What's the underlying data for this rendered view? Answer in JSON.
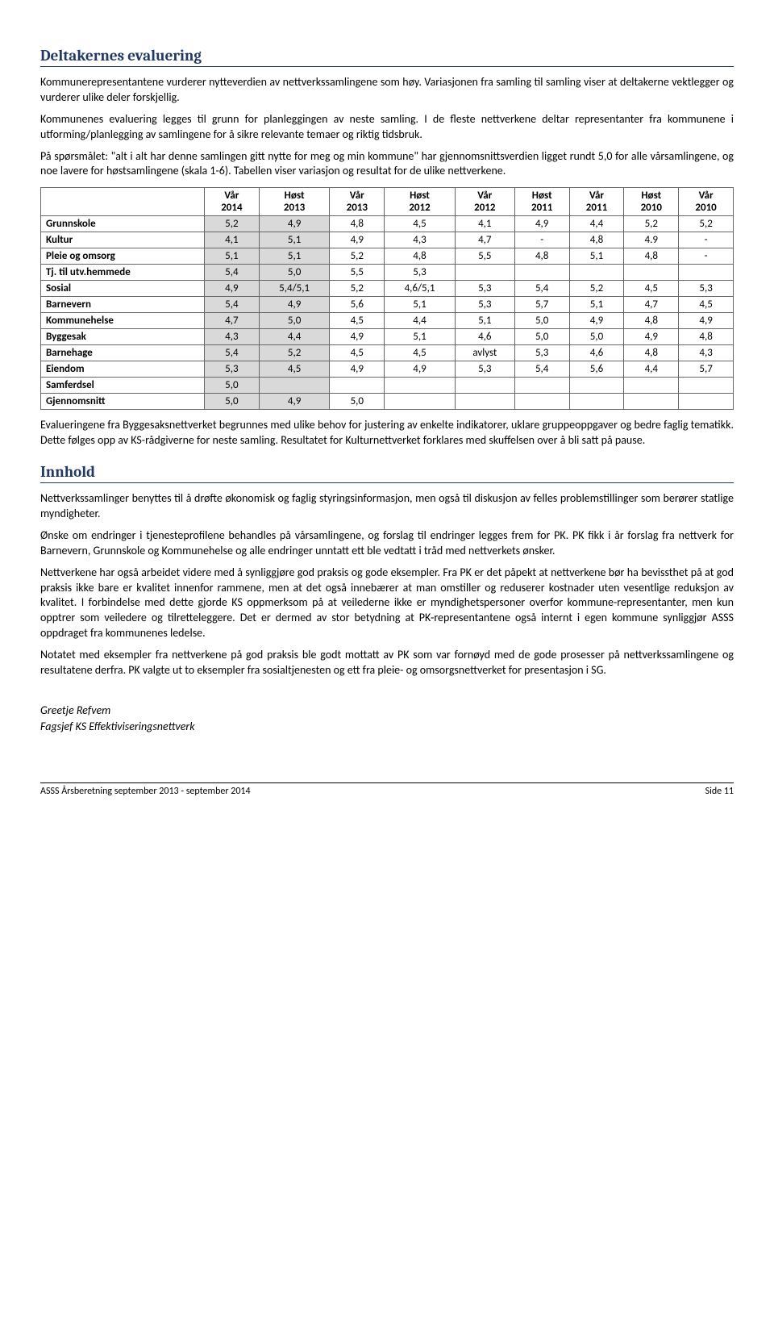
{
  "section1": {
    "title": "Deltakernes evaluering",
    "p1": "Kommunerepresentantene vurderer nytteverdien av nettverkssamlingene som høy. Variasjonen fra samling til samling viser at deltakerne vektlegger og vurderer ulike deler forskjellig.",
    "p2": "Kommunenes evaluering legges til grunn for planleggingen av neste samling. I de fleste nettverkene deltar representanter fra kommunene i utforming/planlegging av samlingene for å sikre relevante temaer og riktig tidsbruk.",
    "p3": "På spørsmålet: \"alt i alt har denne samlingen gitt nytte for meg og min kommune\" har gjennomsnittsverdien ligget rundt 5,0 for alle vårsamlingene, og noe lavere for høstsamlingene (skala 1-6). Tabellen viser variasjon og resultat for de ulike nettverkene."
  },
  "table": {
    "headers": [
      "",
      "Vår 2014",
      "Høst 2013",
      "Vår 2013",
      "Høst 2012",
      "Vår 2012",
      "Høst 2011",
      "Vår 2011",
      "Høst 2010",
      "Vår 2010"
    ],
    "rows": [
      {
        "label": "Grunnskole",
        "cells": [
          "5,2",
          "4,9",
          "4,8",
          "4,5",
          "4,1",
          "4,9",
          "4,4",
          "5,2",
          "5,2"
        ]
      },
      {
        "label": "Kultur",
        "cells": [
          "4,1",
          "5,1",
          "4,9",
          "4,3",
          "4,7",
          "-",
          "4,8",
          "4.9",
          "-"
        ]
      },
      {
        "label": "Pleie og omsorg",
        "cells": [
          "5,1",
          "5,1",
          "5,2",
          "4,8",
          "5,5",
          "4,8",
          "5,1",
          "4,8",
          "-"
        ]
      },
      {
        "label": "Tj. til utv.hemmede",
        "cells": [
          "5,4",
          "5,0",
          "5,5",
          "5,3",
          "",
          "",
          "",
          "",
          ""
        ]
      },
      {
        "label": "Sosial",
        "cells": [
          "4,9",
          "5,4/5,1",
          "5,2",
          "4,6/5,1",
          "5,3",
          "5,4",
          "5,2",
          "4,5",
          "5,3"
        ]
      },
      {
        "label": "Barnevern",
        "cells": [
          "5,4",
          "4,9",
          "5,6",
          "5,1",
          "5,3",
          "5,7",
          "5,1",
          "4,7",
          "4,5"
        ]
      },
      {
        "label": "Kommunehelse",
        "cells": [
          "4,7",
          "5,0",
          "4,5",
          "4,4",
          "5,1",
          "5,0",
          "4,9",
          "4,8",
          "4,9"
        ]
      },
      {
        "label": "Byggesak",
        "cells": [
          "4,3",
          "4,4",
          "4,9",
          "5,1",
          "4,6",
          "5,0",
          "5,0",
          "4,9",
          "4,8"
        ]
      },
      {
        "label": "Barnehage",
        "cells": [
          "5,4",
          "5,2",
          "4,5",
          "4,5",
          "avlyst",
          "5,3",
          "4,6",
          "4,8",
          "4,3"
        ]
      },
      {
        "label": "Eiendom",
        "cells": [
          "5,3",
          "4,5",
          "4,9",
          "4,9",
          "5,3",
          "5,4",
          "5,6",
          "4,4",
          "5,7"
        ]
      },
      {
        "label": "Samferdsel",
        "cells": [
          "5,0",
          "",
          "",
          "",
          "",
          "",
          "",
          "",
          ""
        ]
      },
      {
        "label": "Gjennomsnitt",
        "cells": [
          "5,0",
          "4,9",
          "5,0",
          "",
          "",
          "",
          "",
          "",
          ""
        ]
      }
    ],
    "shaded_cols": [
      0,
      1
    ],
    "header_bg": "#ffffff",
    "shaded_bg": "#d9d9d9",
    "border_color": "#666666"
  },
  "after_table": "Evalueringene fra Byggesaksnettverket begrunnes med ulike behov for justering av enkelte indikatorer, uklare gruppeoppgaver og bedre faglig tematikk. Dette følges opp av KS-rådgiverne for neste samling. Resultatet for Kulturnettverket forklares med skuffelsen over å bli satt på pause.",
  "section2": {
    "title": "Innhold",
    "p1": "Nettverkssamlinger benyttes til å drøfte økonomisk og faglig styringsinformasjon, men også til diskusjon av felles problemstillinger som berører statlige myndigheter.",
    "p2": "Ønske om endringer i tjenesteprofilene behandles på vårsamlingene, og forslag til endringer legges frem for PK. PK fikk i år forslag fra nettverk for Barnevern, Grunnskole og Kommunehelse og alle endringer unntatt ett ble vedtatt i tråd med nettverkets ønsker.",
    "p3": "Nettverkene har også arbeidet videre med å synliggjøre god praksis og gode eksempler. Fra PK er det påpekt at nettverkene bør ha bevissthet på at god praksis ikke bare er kvalitet innenfor rammene, men at det også innebærer at man omstiller og reduserer kostnader uten vesentlige reduksjon av kvalitet. I forbindelse med dette gjorde KS oppmerksom på at veilederne ikke er myndighetspersoner overfor kommune-representanter, men kun opptrer som veiledere og tilretteleggere. Det er dermed av stor betydning at PK-representantene også internt i egen kommune synliggjør ASSS oppdraget fra kommunenes ledelse.",
    "p4": "Notatet med eksempler fra nettverkene på god praksis ble godt mottatt av PK som var fornøyd med de gode prosesser på nettverkssamlingene og resultatene derfra. PK valgte ut to eksempler fra sosialtjenesten og ett fra pleie- og omsorgsnettverket for presentasjon i SG."
  },
  "signature": {
    "name": "Greetje Refvem",
    "title": "Fagsjef KS Effektiviseringsnettverk"
  },
  "footer": {
    "left": "ASSS Årsberetning september 2013 - september 2014",
    "right": "Side 11"
  }
}
